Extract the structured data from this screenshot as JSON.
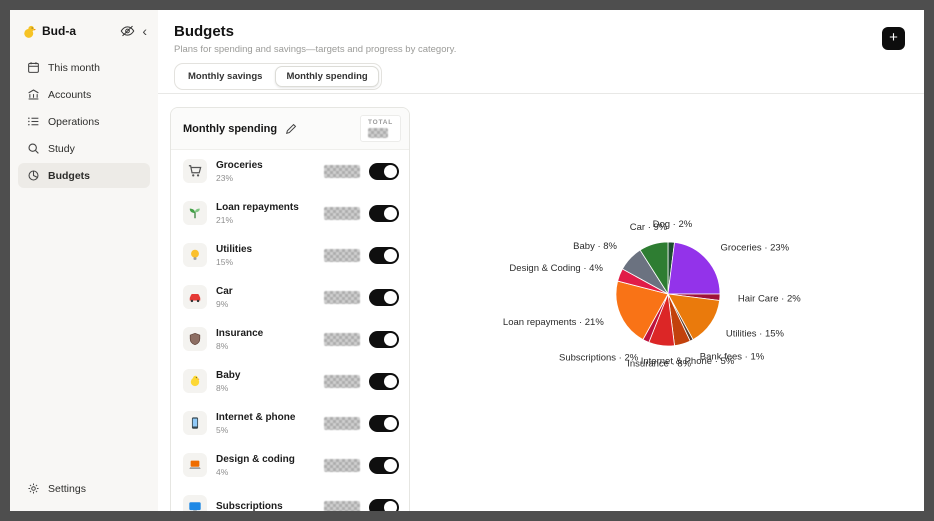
{
  "app": {
    "name": "Bud-a",
    "logo_icon": "duck-icon"
  },
  "sidebar": {
    "items": [
      {
        "label": "This month",
        "icon": "calendar",
        "active": false
      },
      {
        "label": "Accounts",
        "icon": "bank",
        "active": false
      },
      {
        "label": "Operations",
        "icon": "list",
        "active": false
      },
      {
        "label": "Study",
        "icon": "search",
        "active": false
      },
      {
        "label": "Budgets",
        "icon": "pie",
        "active": true
      }
    ],
    "settings": {
      "label": "Settings",
      "icon": "gear"
    }
  },
  "header": {
    "title": "Budgets",
    "subtitle": "Plans for spending and savings—targets and progress by category.",
    "tabs": [
      {
        "label": "Monthly savings",
        "active": false
      },
      {
        "label": "Monthly spending",
        "active": true
      }
    ],
    "add_button_label": "+"
  },
  "card": {
    "title": "Monthly spending",
    "total_label": "TOTAL",
    "values_hidden": true,
    "rows": [
      {
        "name": "Groceries",
        "percent": "23%",
        "icon": "cart",
        "enabled": true
      },
      {
        "name": "Loan repayments",
        "percent": "21%",
        "icon": "seedling",
        "enabled": true
      },
      {
        "name": "Utilities",
        "percent": "15%",
        "icon": "bulb",
        "enabled": true
      },
      {
        "name": "Car",
        "percent": "9%",
        "icon": "car",
        "enabled": true
      },
      {
        "name": "Insurance",
        "percent": "8%",
        "icon": "shield",
        "enabled": true
      },
      {
        "name": "Baby",
        "percent": "8%",
        "icon": "chick",
        "enabled": true
      },
      {
        "name": "Internet & phone",
        "percent": "5%",
        "icon": "phone",
        "enabled": true
      },
      {
        "name": "Design & coding",
        "percent": "4%",
        "icon": "laptop",
        "enabled": true
      },
      {
        "name": "Subscriptions",
        "percent": "",
        "icon": "screen",
        "enabled": true
      }
    ]
  },
  "colors": {
    "accent_black": "#0d0d0d",
    "sidebar_bg": "#f8f7f5",
    "active_item_bg": "#edebe7"
  },
  "chart_data": {
    "type": "pie",
    "legend": "none",
    "start_angle_deg": 0,
    "direction": "clockwise",
    "label_format": "{label} · {value}%",
    "slices": [
      {
        "label": "Dog",
        "value": 2,
        "color": "#1b4d2e"
      },
      {
        "label": "Groceries",
        "value": 23,
        "color": "#9333ea"
      },
      {
        "label": "Hair Care",
        "value": 2,
        "color": "#9f1239"
      },
      {
        "label": "Utilities",
        "value": 15,
        "color": "#ea7a0c"
      },
      {
        "label": "Bank fees",
        "value": 1,
        "color": "#5b3a29"
      },
      {
        "label": "Internet & Phone",
        "value": 5,
        "color": "#c2410c"
      },
      {
        "label": "Insurance",
        "value": 8,
        "color": "#dc2626"
      },
      {
        "label": "Subscriptions",
        "value": 2,
        "color": "#be123c"
      },
      {
        "label": "Loan repayments",
        "value": 21,
        "color": "#f97316"
      },
      {
        "label": "Design & Coding",
        "value": 4,
        "color": "#e11d48"
      },
      {
        "label": "Baby",
        "value": 8,
        "color": "#6b7280"
      },
      {
        "label": "Car",
        "value": 9,
        "color": "#2e7d32"
      }
    ]
  }
}
